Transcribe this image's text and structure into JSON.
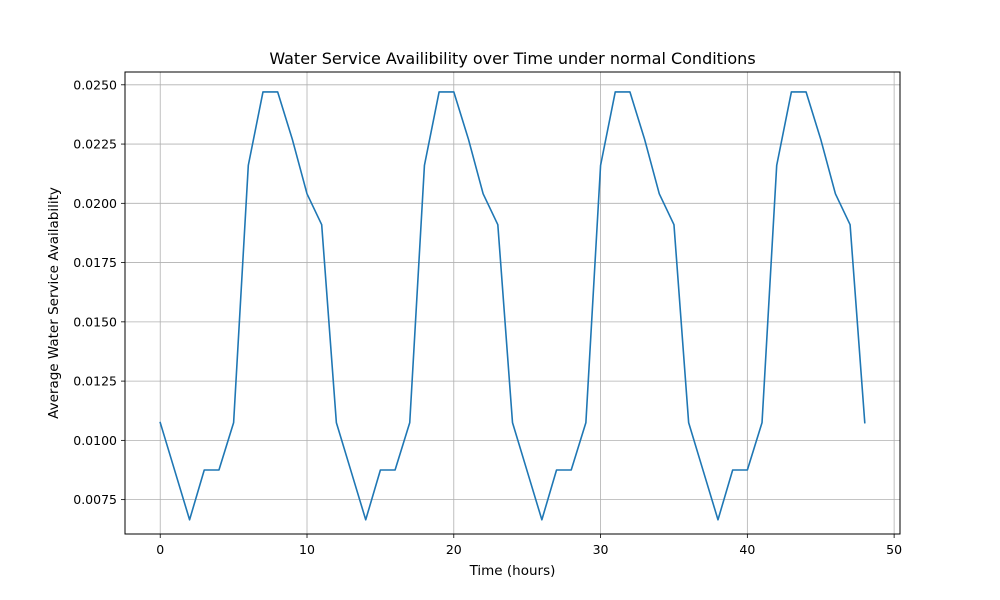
{
  "chart_data": {
    "type": "line",
    "title": "Water Service Availibility over Time under normal Conditions",
    "xlabel": "Time (hours)",
    "ylabel": "Average Water Service Availability",
    "xlim": [
      -2.4,
      50.4
    ],
    "ylim": [
      0.00605,
      0.02554
    ],
    "grid": true,
    "x_ticks": [
      0,
      10,
      20,
      30,
      40,
      50
    ],
    "x_tick_labels": [
      "0",
      "10",
      "20",
      "30",
      "40",
      "50"
    ],
    "y_ticks": [
      0.0075,
      0.01,
      0.0125,
      0.015,
      0.0175,
      0.02,
      0.0225,
      0.025
    ],
    "y_tick_labels": [
      "0.0075",
      "0.0100",
      "0.0125",
      "0.0150",
      "0.0175",
      "0.0200",
      "0.0225",
      "0.0250"
    ],
    "series": [
      {
        "color": "#1f77b4",
        "x": [
          0,
          1,
          2,
          3,
          4,
          5,
          6,
          7,
          8,
          9,
          10,
          11,
          12,
          13,
          14,
          15,
          16,
          17,
          18,
          19,
          20,
          21,
          22,
          23,
          24,
          25,
          26,
          27,
          28,
          29,
          30,
          31,
          32,
          33,
          34,
          35,
          36,
          37,
          38,
          39,
          40,
          41,
          42,
          43,
          44,
          45,
          46,
          47,
          48
        ],
        "values": [
          0.01075,
          0.0087,
          0.00665,
          0.00875,
          0.00875,
          0.01075,
          0.0216,
          0.0247,
          0.0247,
          0.0227,
          0.0204,
          0.0191,
          0.01075,
          0.0087,
          0.00665,
          0.00875,
          0.00875,
          0.01075,
          0.0216,
          0.0247,
          0.0247,
          0.0227,
          0.0204,
          0.0191,
          0.01075,
          0.0087,
          0.00665,
          0.00875,
          0.00875,
          0.01075,
          0.0216,
          0.0247,
          0.0247,
          0.0227,
          0.0204,
          0.0191,
          0.01075,
          0.0087,
          0.00665,
          0.00875,
          0.00875,
          0.01075,
          0.0216,
          0.0247,
          0.0247,
          0.0227,
          0.0204,
          0.0191,
          0.01075
        ]
      }
    ]
  }
}
